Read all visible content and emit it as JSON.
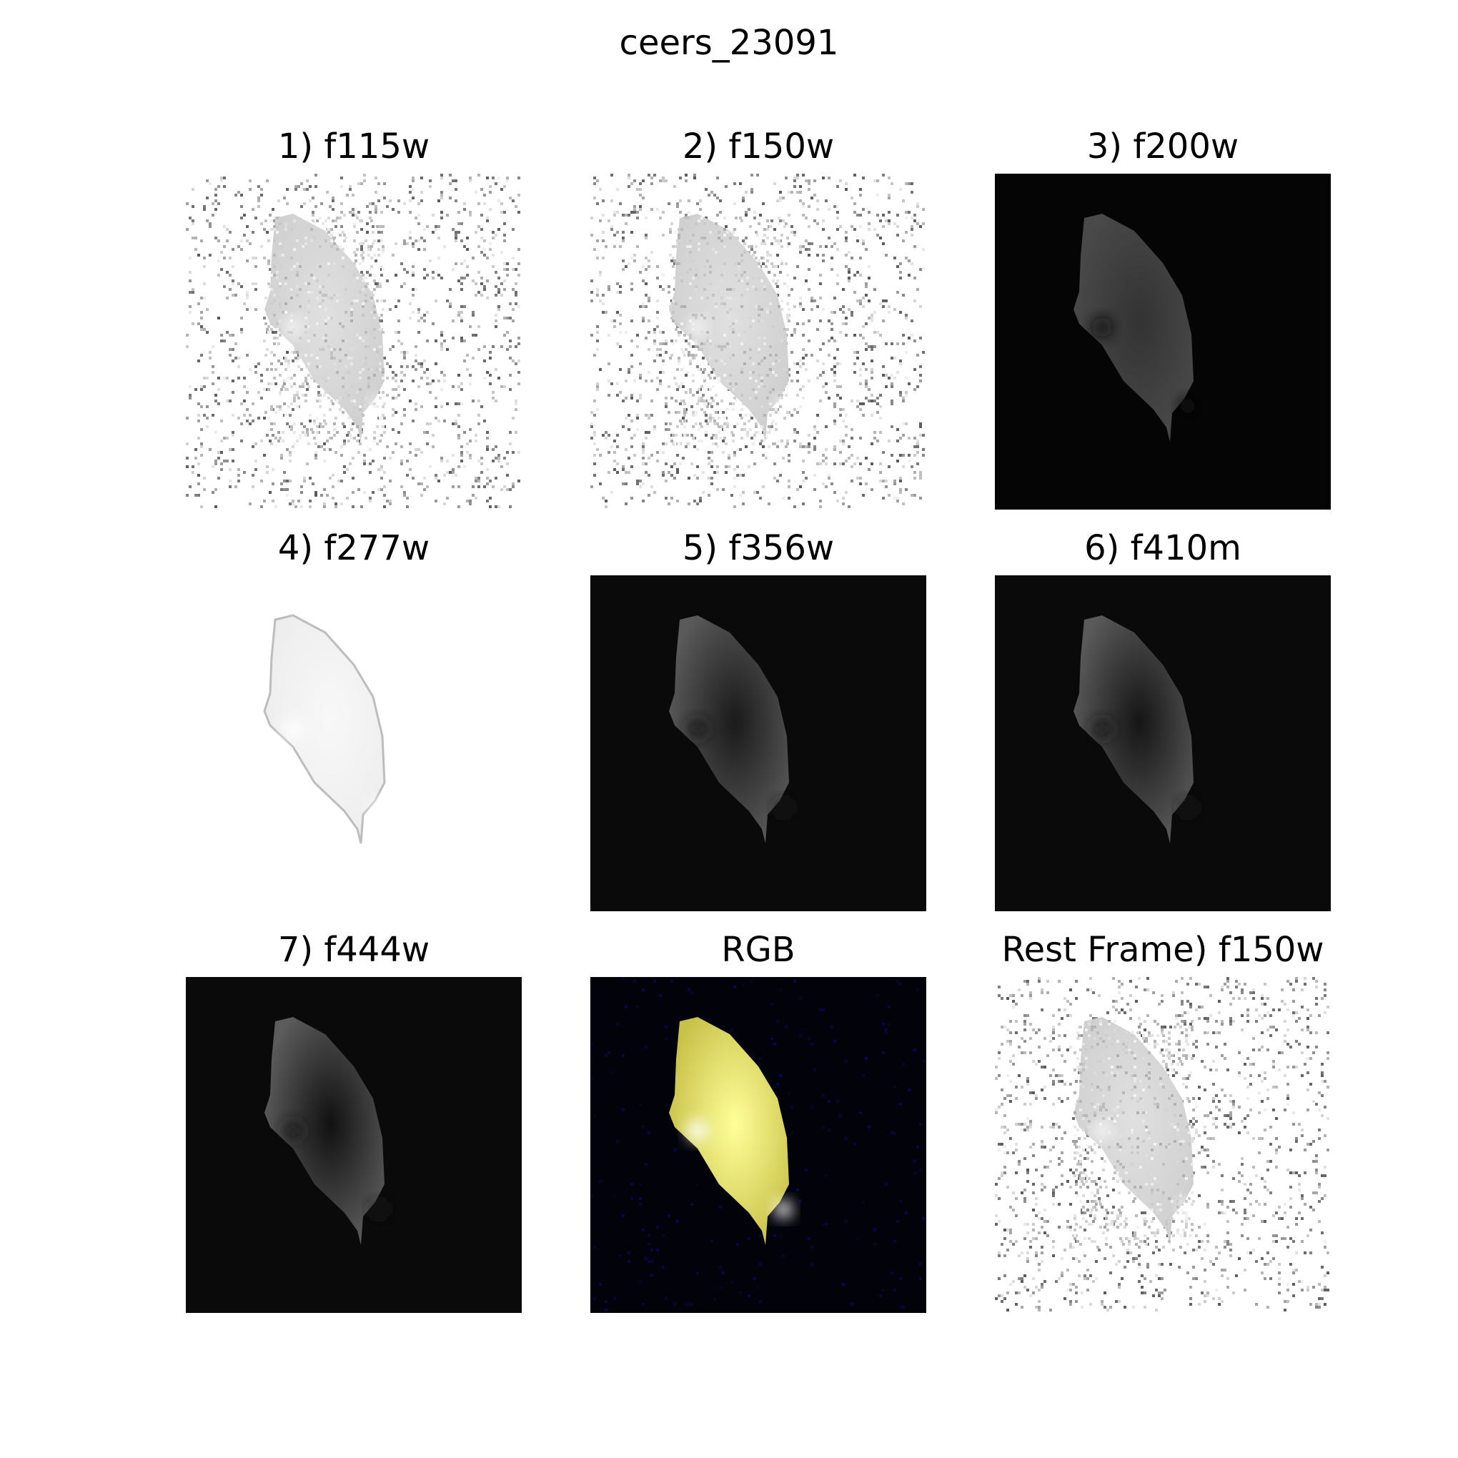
{
  "figure": {
    "title": "ceers_23091"
  },
  "panels": [
    {
      "title": "1) f115w",
      "style": "noisy-light"
    },
    {
      "title": "2) f150w",
      "style": "noisy-light"
    },
    {
      "title": "3) f200w",
      "style": "dark-bg",
      "bg": "#050505",
      "body": "#4a4a4a",
      "core": "#333333",
      "clump": "#111111"
    },
    {
      "title": "4) f277w",
      "style": "light-smooth",
      "body": "#ededed",
      "core": "#f8f8f8",
      "clump": "#ffffff"
    },
    {
      "title": "5) f356w",
      "style": "dark-bg",
      "bg": "#0a0a0a",
      "body": "#5a5a5a",
      "core": "#1a1a1a",
      "clump": "#1a1a1a"
    },
    {
      "title": "6) f410m",
      "style": "dark-bg",
      "bg": "#0a0a0a",
      "body": "#5a5a5a",
      "core": "#151515",
      "clump": "#1a1a1a"
    },
    {
      "title": "7) f444w",
      "style": "dark-bg",
      "bg": "#0a0a0a",
      "body": "#5c5c5c",
      "core": "#111111",
      "clump": "#1a1a1a"
    },
    {
      "title": "RGB",
      "style": "rgb",
      "bg": "#02020a",
      "body": "#c9c24a",
      "core": "#ffff99",
      "clump": "#ffffff"
    },
    {
      "title": "Rest Frame) f150w",
      "style": "noisy-light"
    }
  ]
}
